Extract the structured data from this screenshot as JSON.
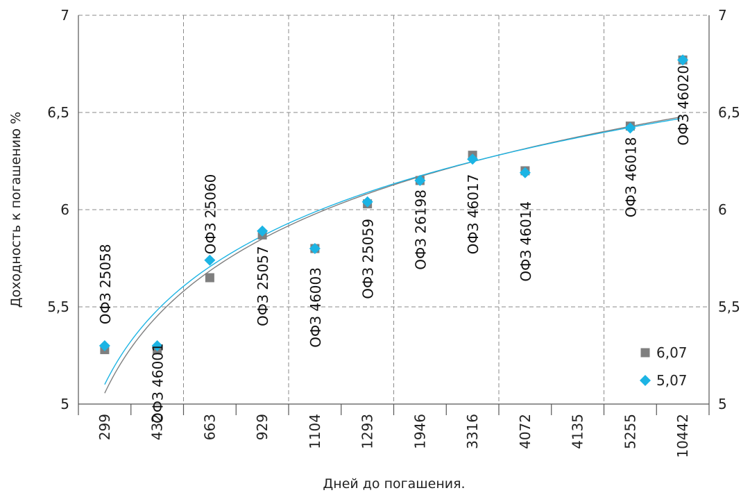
{
  "chart_data": {
    "type": "scatter",
    "xlabel": "Дней до погашения.",
    "ylabel": "Доходность к погашению %",
    "categories": [
      "299",
      "432",
      "663",
      "929",
      "1104",
      "1293",
      "1946",
      "3316",
      "4072",
      "4135",
      "5255",
      "10442"
    ],
    "ylim": [
      5,
      7
    ],
    "yticks": [
      "5",
      "5,5",
      "6",
      "6,5",
      "7"
    ],
    "grid": true,
    "legend_position": "right",
    "point_labels": [
      {
        "text": "ОФЗ 25058",
        "cat": 0
      },
      {
        "text": "ОФЗ 46001",
        "cat": 1
      },
      {
        "text": "ОФЗ 25060",
        "cat": 2
      },
      {
        "text": "ОФЗ 25057",
        "cat": 3
      },
      {
        "text": "ОФЗ 46003",
        "cat": 4
      },
      {
        "text": "ОФЗ 25059",
        "cat": 5
      },
      {
        "text": "ОФЗ 26198",
        "cat": 6
      },
      {
        "text": "ОФЗ 46017",
        "cat": 7
      },
      {
        "text": "ОФЗ 46014",
        "cat": 8
      },
      {
        "text": "ОФЗ 46018",
        "cat": 10
      },
      {
        "text": "ОФЗ 46020",
        "cat": 11
      }
    ],
    "series": [
      {
        "name": "6,07",
        "marker": "square",
        "color": "#7f7f7f",
        "points": [
          {
            "cat": 0,
            "y": 5.28
          },
          {
            "cat": 1,
            "y": 5.28
          },
          {
            "cat": 2,
            "y": 5.65
          },
          {
            "cat": 3,
            "y": 5.87
          },
          {
            "cat": 4,
            "y": 5.8
          },
          {
            "cat": 5,
            "y": 6.03
          },
          {
            "cat": 6,
            "y": 6.15
          },
          {
            "cat": 7,
            "y": 6.28
          },
          {
            "cat": 8,
            "y": 6.2
          },
          {
            "cat": 10,
            "y": 6.43
          },
          {
            "cat": 11,
            "y": 6.77
          }
        ],
        "trend": {
          "type": "logarithmic",
          "color": "#7f7f7f"
        }
      },
      {
        "name": "5,07",
        "marker": "diamond",
        "color": "#1cb4e4",
        "points": [
          {
            "cat": 0,
            "y": 5.3
          },
          {
            "cat": 1,
            "y": 5.3
          },
          {
            "cat": 2,
            "y": 5.74
          },
          {
            "cat": 3,
            "y": 5.89
          },
          {
            "cat": 4,
            "y": 5.8
          },
          {
            "cat": 5,
            "y": 6.04
          },
          {
            "cat": 6,
            "y": 6.15
          },
          {
            "cat": 7,
            "y": 6.26
          },
          {
            "cat": 8,
            "y": 6.19
          },
          {
            "cat": 10,
            "y": 6.42
          },
          {
            "cat": 11,
            "y": 6.77
          }
        ],
        "trend": {
          "type": "logarithmic",
          "color": "#1cb4e4"
        }
      }
    ]
  }
}
